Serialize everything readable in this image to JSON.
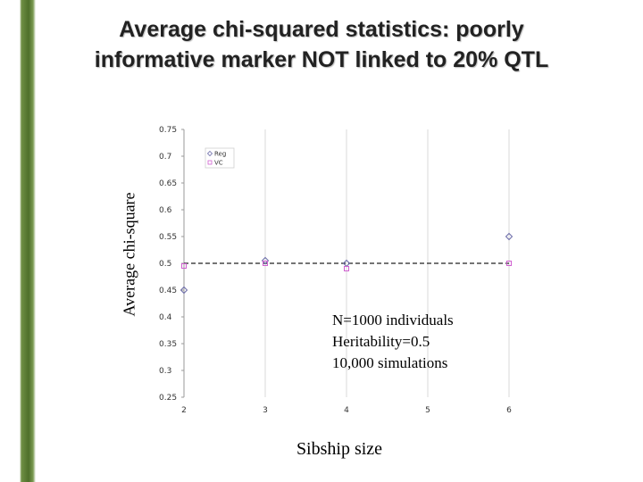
{
  "slide": {
    "title_line1": "Average chi-squared statistics: poorly",
    "title_line2": "informative marker NOT linked to 20% QTL",
    "note_lines": [
      "N=1000 individuals",
      "Heritability=0.5",
      "10,000 simulations"
    ]
  },
  "chart_data": {
    "type": "scatter",
    "title": "Average chi-squared statistics: poorly informative marker NOT linked to 20% QTL",
    "xlabel": "Sibship size",
    "ylabel": "Average chi-square",
    "x": [
      2,
      3,
      4,
      5,
      6
    ],
    "x_ticks": [
      "2",
      "3",
      "4",
      "5",
      "6"
    ],
    "xlim": [
      2,
      6
    ],
    "ylim": [
      0.25,
      0.75
    ],
    "y_ticks": [
      "0.25",
      "0.3",
      "0.35",
      "0.4",
      "0.45",
      "0.5",
      "0.55",
      "0.6",
      "0.65",
      "0.7",
      "0.75"
    ],
    "grid": "vertical",
    "reference_line": 0.5,
    "legend_position": "top-left",
    "series": [
      {
        "name": "Reg",
        "marker": "diamond",
        "color": "#6a6aa8",
        "x": [
          2,
          3,
          4,
          6
        ],
        "y": [
          0.45,
          0.505,
          0.5,
          0.55
        ]
      },
      {
        "name": "VC",
        "marker": "square",
        "color": "#d060d0",
        "x": [
          2,
          3,
          4,
          6
        ],
        "y": [
          0.495,
          0.5,
          0.49,
          0.5
        ]
      }
    ]
  }
}
